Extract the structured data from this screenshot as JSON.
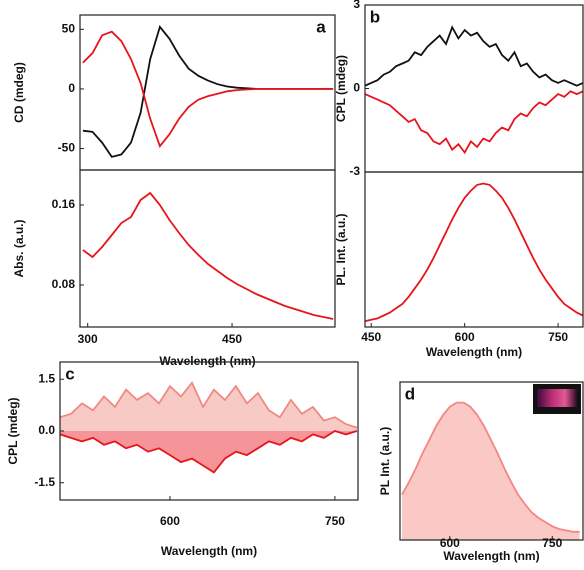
{
  "chart_data": [
    {
      "type": "line",
      "panel_label": "a",
      "y_label": "CD (mdeg)",
      "x": [
        295,
        305,
        315,
        325,
        335,
        345,
        355,
        365,
        375,
        385,
        395,
        405,
        415,
        425,
        435,
        445,
        455,
        465,
        475,
        485,
        495,
        505,
        515,
        525,
        535,
        545,
        555
      ],
      "series": [
        {
          "color": "#111111",
          "values": [
            -35,
            -36,
            -45,
            -57,
            -55,
            -45,
            -20,
            25,
            52,
            42,
            28,
            17,
            11,
            7,
            4,
            2,
            1,
            0.5,
            0,
            0,
            0,
            0,
            0,
            0,
            0,
            0,
            0
          ]
        },
        {
          "color": "#e8141c",
          "values": [
            22,
            30,
            45,
            48,
            40,
            25,
            5,
            -25,
            -48,
            -38,
            -25,
            -15,
            -9,
            -6,
            -4,
            -2,
            -1,
            -0.5,
            0,
            0,
            0,
            0,
            0,
            0,
            0,
            0,
            0
          ]
        }
      ],
      "xlim": [
        292,
        557
      ],
      "ylim": [
        -68,
        62
      ],
      "yticks": [
        50,
        0,
        -50
      ]
    },
    {
      "type": "line",
      "y_label": "Abs. (a.u.)",
      "x_label": "Wavelength (nm)",
      "x": [
        295,
        305,
        315,
        325,
        335,
        345,
        355,
        365,
        375,
        385,
        395,
        405,
        415,
        425,
        435,
        445,
        455,
        465,
        475,
        485,
        495,
        505,
        515,
        525,
        535,
        545,
        555
      ],
      "series": [
        {
          "color": "#e8141c",
          "values": [
            0.115,
            0.108,
            0.118,
            0.13,
            0.142,
            0.148,
            0.165,
            0.172,
            0.16,
            0.145,
            0.132,
            0.12,
            0.11,
            0.101,
            0.094,
            0.087,
            0.081,
            0.076,
            0.071,
            0.067,
            0.063,
            0.059,
            0.056,
            0.053,
            0.05,
            0.048,
            0.046
          ]
        }
      ],
      "xlim": [
        292,
        557
      ],
      "xticks": [
        300,
        450
      ],
      "ylim": [
        0.038,
        0.195
      ],
      "yticks": [
        0.16,
        0.08
      ]
    },
    {
      "type": "line",
      "panel_label": "b",
      "y_label": "CPL (mdeg)",
      "x": [
        440,
        450,
        460,
        470,
        480,
        490,
        500,
        510,
        520,
        530,
        540,
        550,
        560,
        570,
        580,
        590,
        600,
        610,
        620,
        630,
        640,
        650,
        660,
        670,
        680,
        690,
        700,
        710,
        720,
        730,
        740,
        750,
        760,
        770,
        780,
        790
      ],
      "series": [
        {
          "color": "#111111",
          "values": [
            0.1,
            0.2,
            0.3,
            0.5,
            0.6,
            0.8,
            0.9,
            1.0,
            1.3,
            1.2,
            1.5,
            1.7,
            1.9,
            1.6,
            2.2,
            1.8,
            2.1,
            1.9,
            2.0,
            1.7,
            1.5,
            1.6,
            1.2,
            1.0,
            1.3,
            0.8,
            0.9,
            0.6,
            0.4,
            0.5,
            0.3,
            0.2,
            0.3,
            0.2,
            0.1,
            0.2
          ]
        },
        {
          "color": "#e8141c",
          "values": [
            -0.2,
            -0.3,
            -0.4,
            -0.5,
            -0.6,
            -0.8,
            -1.0,
            -1.2,
            -1.1,
            -1.5,
            -1.6,
            -1.9,
            -2.0,
            -1.8,
            -2.2,
            -2.0,
            -2.3,
            -1.9,
            -2.1,
            -1.8,
            -1.9,
            -1.6,
            -1.4,
            -1.5,
            -1.1,
            -0.9,
            -1.0,
            -0.7,
            -0.5,
            -0.6,
            -0.4,
            -0.2,
            -0.3,
            -0.1,
            -0.2,
            -0.1
          ]
        }
      ],
      "xlim": [
        440,
        790
      ],
      "ylim": [
        -3,
        3
      ],
      "yticks": [
        3,
        0,
        -3
      ]
    },
    {
      "type": "line",
      "y_label": "PL. Int. (a.u.)",
      "x_label": "Wavelength (nm)",
      "x": [
        440,
        450,
        460,
        470,
        480,
        490,
        500,
        510,
        520,
        530,
        540,
        550,
        560,
        570,
        580,
        590,
        600,
        610,
        620,
        630,
        640,
        650,
        660,
        670,
        680,
        690,
        700,
        710,
        720,
        730,
        740,
        750,
        760,
        770,
        780,
        790
      ],
      "series": [
        {
          "color": "#e8141c",
          "values": [
            0.04,
            0.05,
            0.06,
            0.08,
            0.1,
            0.13,
            0.16,
            0.21,
            0.27,
            0.33,
            0.4,
            0.48,
            0.57,
            0.66,
            0.75,
            0.83,
            0.9,
            0.95,
            0.99,
            1.0,
            0.99,
            0.95,
            0.9,
            0.83,
            0.75,
            0.66,
            0.57,
            0.48,
            0.4,
            0.33,
            0.27,
            0.21,
            0.16,
            0.13,
            0.1,
            0.08
          ]
        }
      ],
      "xlim": [
        440,
        790
      ],
      "xticks": [
        450,
        600,
        750
      ],
      "ylim": [
        0,
        1.08
      ]
    },
    {
      "type": "area",
      "panel_label": "c",
      "y_label": "CPL (mdeg)",
      "x_label": "Wavelength (nm)",
      "x": [
        500,
        510,
        520,
        530,
        540,
        550,
        560,
        570,
        580,
        590,
        600,
        610,
        620,
        630,
        640,
        650,
        660,
        670,
        680,
        690,
        700,
        710,
        720,
        730,
        740,
        750,
        760,
        770
      ],
      "series": [
        {
          "color": "#f08a80",
          "values": [
            0.4,
            0.5,
            0.8,
            0.6,
            1.0,
            0.7,
            1.2,
            0.9,
            1.1,
            0.8,
            1.3,
            1.0,
            1.4,
            0.7,
            1.2,
            0.9,
            1.3,
            0.8,
            1.1,
            0.6,
            0.4,
            0.9,
            0.5,
            0.7,
            0.3,
            0.4,
            0.2,
            0.1
          ]
        },
        {
          "color": "#e8141c",
          "values": [
            -0.1,
            -0.2,
            -0.3,
            -0.2,
            -0.4,
            -0.3,
            -0.5,
            -0.4,
            -0.6,
            -0.5,
            -0.7,
            -0.9,
            -0.8,
            -1.0,
            -1.2,
            -0.8,
            -0.6,
            -0.7,
            -0.5,
            -0.3,
            -0.4,
            -0.2,
            -0.3,
            -0.1,
            -0.2,
            0.0,
            -0.1,
            0.0
          ]
        }
      ],
      "xlim": [
        500,
        771
      ],
      "xticks": [
        600,
        750
      ],
      "ylim": [
        -2,
        2
      ],
      "yticks": [
        1.5,
        {
          "value": 0,
          "label": "0.0"
        },
        -1.5
      ]
    },
    {
      "type": "area",
      "panel_label": "d",
      "y_label": "PL Int. (a.u.)",
      "x_label": "Wavelength (nm)",
      "x": [
        530,
        540,
        550,
        560,
        570,
        580,
        590,
        600,
        610,
        620,
        630,
        640,
        650,
        660,
        670,
        680,
        690,
        700,
        710,
        720,
        730,
        740,
        750,
        760,
        770,
        780,
        790
      ],
      "series": [
        {
          "color": "#f4877f",
          "values": [
            0.33,
            0.42,
            0.52,
            0.63,
            0.73,
            0.83,
            0.91,
            0.97,
            1.0,
            1.0,
            0.97,
            0.91,
            0.83,
            0.73,
            0.63,
            0.52,
            0.42,
            0.33,
            0.26,
            0.2,
            0.16,
            0.13,
            0.1,
            0.08,
            0.07,
            0.06,
            0.06
          ]
        }
      ],
      "xlim": [
        527,
        795
      ],
      "xticks": [
        600,
        750
      ],
      "ylim": [
        0,
        1.15
      ]
    }
  ]
}
